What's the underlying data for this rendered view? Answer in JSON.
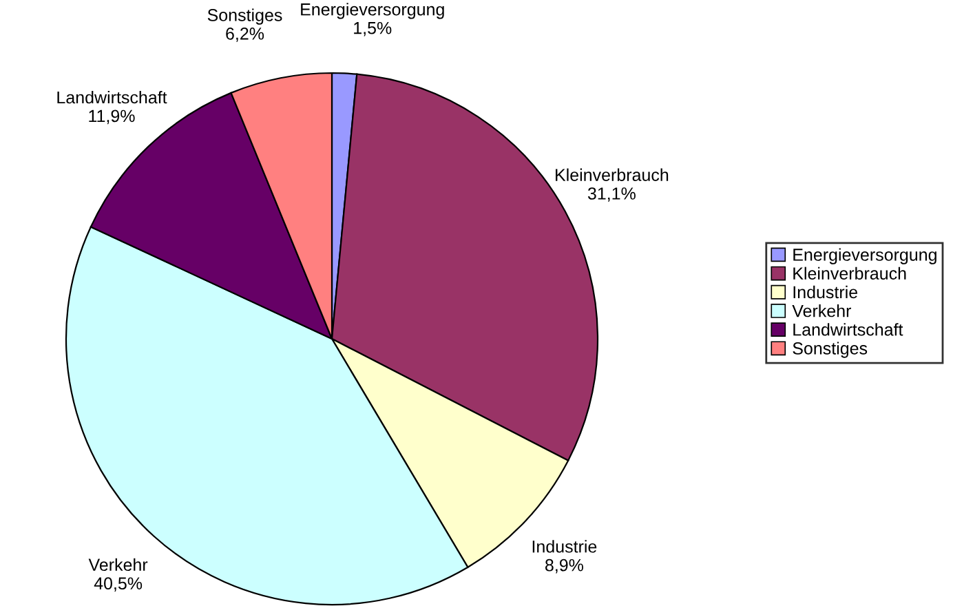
{
  "chart_data": {
    "type": "pie",
    "categories": [
      "Energieversorgung",
      "Kleinverbrauch",
      "Industrie",
      "Verkehr",
      "Landwirtschaft",
      "Sonstiges"
    ],
    "values": [
      1.5,
      31.1,
      8.9,
      40.5,
      11.9,
      6.2
    ],
    "value_labels": [
      "1,5%",
      "31,1%",
      "8,9%",
      "40,5%",
      "11,9%",
      "6,2%"
    ],
    "colors": [
      "#9999ff",
      "#993366",
      "#ffffcc",
      "#ccffff",
      "#660066",
      "#ff8080"
    ],
    "legend": "right"
  }
}
